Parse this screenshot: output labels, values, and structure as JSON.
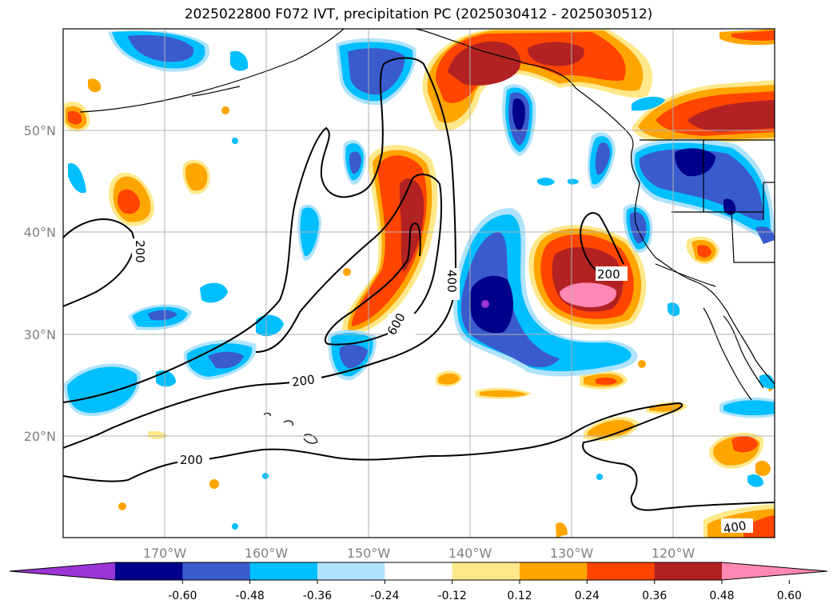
{
  "figure": {
    "title": "2025022800 F072 IVT, precipitation PC (2025030412 - 2025030512)"
  },
  "map": {
    "lon_ticks": [
      "170°W",
      "160°W",
      "150°W",
      "140°W",
      "130°W",
      "120°W"
    ],
    "lat_ticks": [
      "50°N",
      "40°N",
      "30°N",
      "20°N"
    ],
    "contour_labels": [
      "200",
      "200",
      "200",
      "200",
      "400",
      "400",
      "600"
    ]
  },
  "colorbar": {
    "levels": [
      "-0.60",
      "-0.48",
      "-0.36",
      "-0.24",
      "-0.12",
      "0.12",
      "0.24",
      "0.36",
      "0.48",
      "0.60"
    ],
    "colors": [
      "#9a34d4",
      "#00008b",
      "#3a5bcc",
      "#00bfff",
      "#afe3fb",
      "#ffffff",
      "#ffe88a",
      "#ffa500",
      "#ff4500",
      "#b22222",
      "#ff88b4"
    ]
  },
  "palette": {
    "deep_purple": "#9a34d4",
    "navy": "#00008b",
    "royal_blue": "#3a5bcc",
    "sky_blue": "#00bfff",
    "light_blue": "#afe3fb",
    "light_yellow": "#ffe88a",
    "orange": "#ffa500",
    "orange_red": "#ff4500",
    "firebrick": "#b22222",
    "pink": "#ff88b4"
  }
}
